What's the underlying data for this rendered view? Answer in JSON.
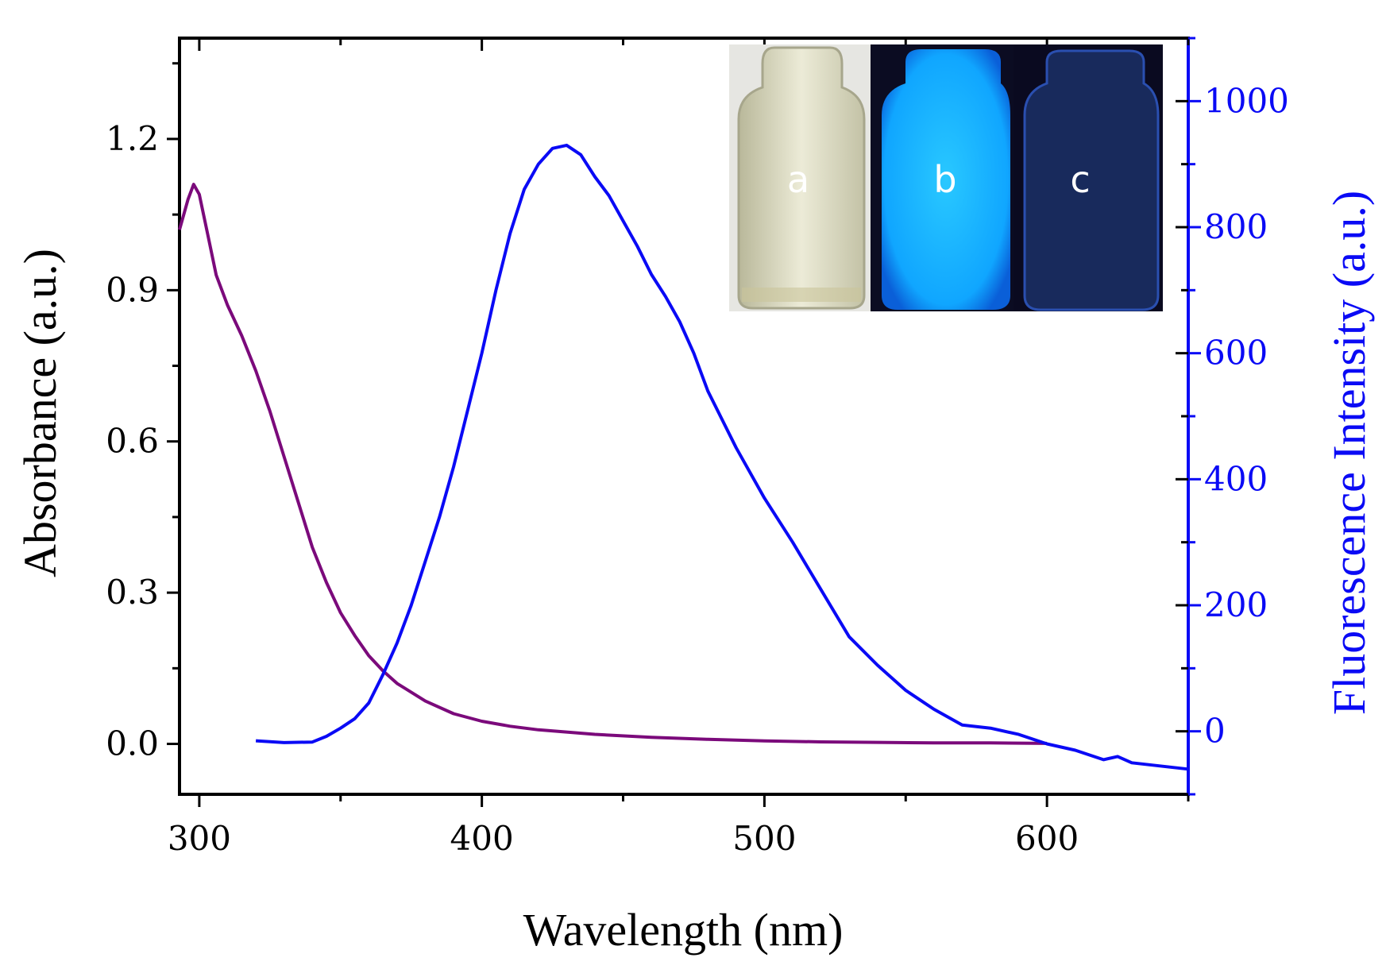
{
  "chart_data": {
    "type": "line",
    "title": "",
    "xlabel": "Wavelength (nm)",
    "ylabel_left": "Absorbance (a.u.)",
    "ylabel_right": "Fluorescence Intensity (a.u.)",
    "xlim": [
      293,
      650
    ],
    "ylim_left": [
      -0.1,
      1.4
    ],
    "ylim_right": [
      -100,
      1100
    ],
    "x_ticks": [
      300,
      400,
      500,
      600
    ],
    "x_tick_labels": [
      "300",
      "400",
      "500",
      "600"
    ],
    "y_left_ticks": [
      0.0,
      0.3,
      0.6,
      0.9,
      1.2
    ],
    "y_left_tick_labels": [
      "0.0",
      "0.3",
      "0.6",
      "0.9",
      "1.2"
    ],
    "y_right_ticks": [
      0,
      200,
      400,
      600,
      800,
      1000
    ],
    "y_right_tick_labels": [
      "0",
      "200",
      "400",
      "600",
      "800",
      "1000"
    ],
    "grid": false,
    "series": [
      {
        "name": "Absorbance",
        "axis": "left",
        "color": "#7b0a7b",
        "x": [
          293,
          296,
          298,
          300,
          303,
          306,
          310,
          315,
          320,
          325,
          330,
          335,
          340,
          345,
          350,
          355,
          360,
          365,
          370,
          380,
          390,
          400,
          410,
          420,
          440,
          460,
          480,
          500,
          520,
          540,
          560,
          580,
          600
        ],
        "y": [
          1.02,
          1.08,
          1.11,
          1.09,
          1.01,
          0.93,
          0.87,
          0.81,
          0.74,
          0.66,
          0.57,
          0.48,
          0.39,
          0.32,
          0.26,
          0.215,
          0.175,
          0.145,
          0.12,
          0.085,
          0.06,
          0.045,
          0.035,
          0.028,
          0.019,
          0.013,
          0.009,
          0.006,
          0.004,
          0.003,
          0.002,
          0.002,
          0.001
        ]
      },
      {
        "name": "Fluorescence",
        "axis": "right",
        "color": "#0a0af5",
        "x": [
          320,
          330,
          340,
          345,
          350,
          355,
          360,
          365,
          370,
          375,
          380,
          385,
          390,
          395,
          400,
          405,
          410,
          415,
          420,
          425,
          430,
          435,
          440,
          445,
          450,
          455,
          460,
          465,
          470,
          475,
          480,
          490,
          500,
          510,
          520,
          530,
          540,
          545,
          550,
          560,
          570,
          580,
          590,
          600,
          610,
          620,
          625,
          630,
          640,
          650
        ],
        "y": [
          -15,
          -18,
          -17,
          -8,
          5,
          20,
          45,
          90,
          140,
          200,
          270,
          340,
          420,
          510,
          600,
          700,
          790,
          860,
          900,
          925,
          930,
          915,
          880,
          850,
          810,
          770,
          725,
          690,
          650,
          600,
          540,
          450,
          370,
          300,
          225,
          150,
          105,
          85,
          65,
          35,
          10,
          5,
          -5,
          -20,
          -30,
          -45,
          -40,
          -50,
          -55,
          -60
        ]
      }
    ],
    "inset": {
      "description": "photo of three vials",
      "labels": [
        "a",
        "b",
        "c"
      ]
    }
  }
}
